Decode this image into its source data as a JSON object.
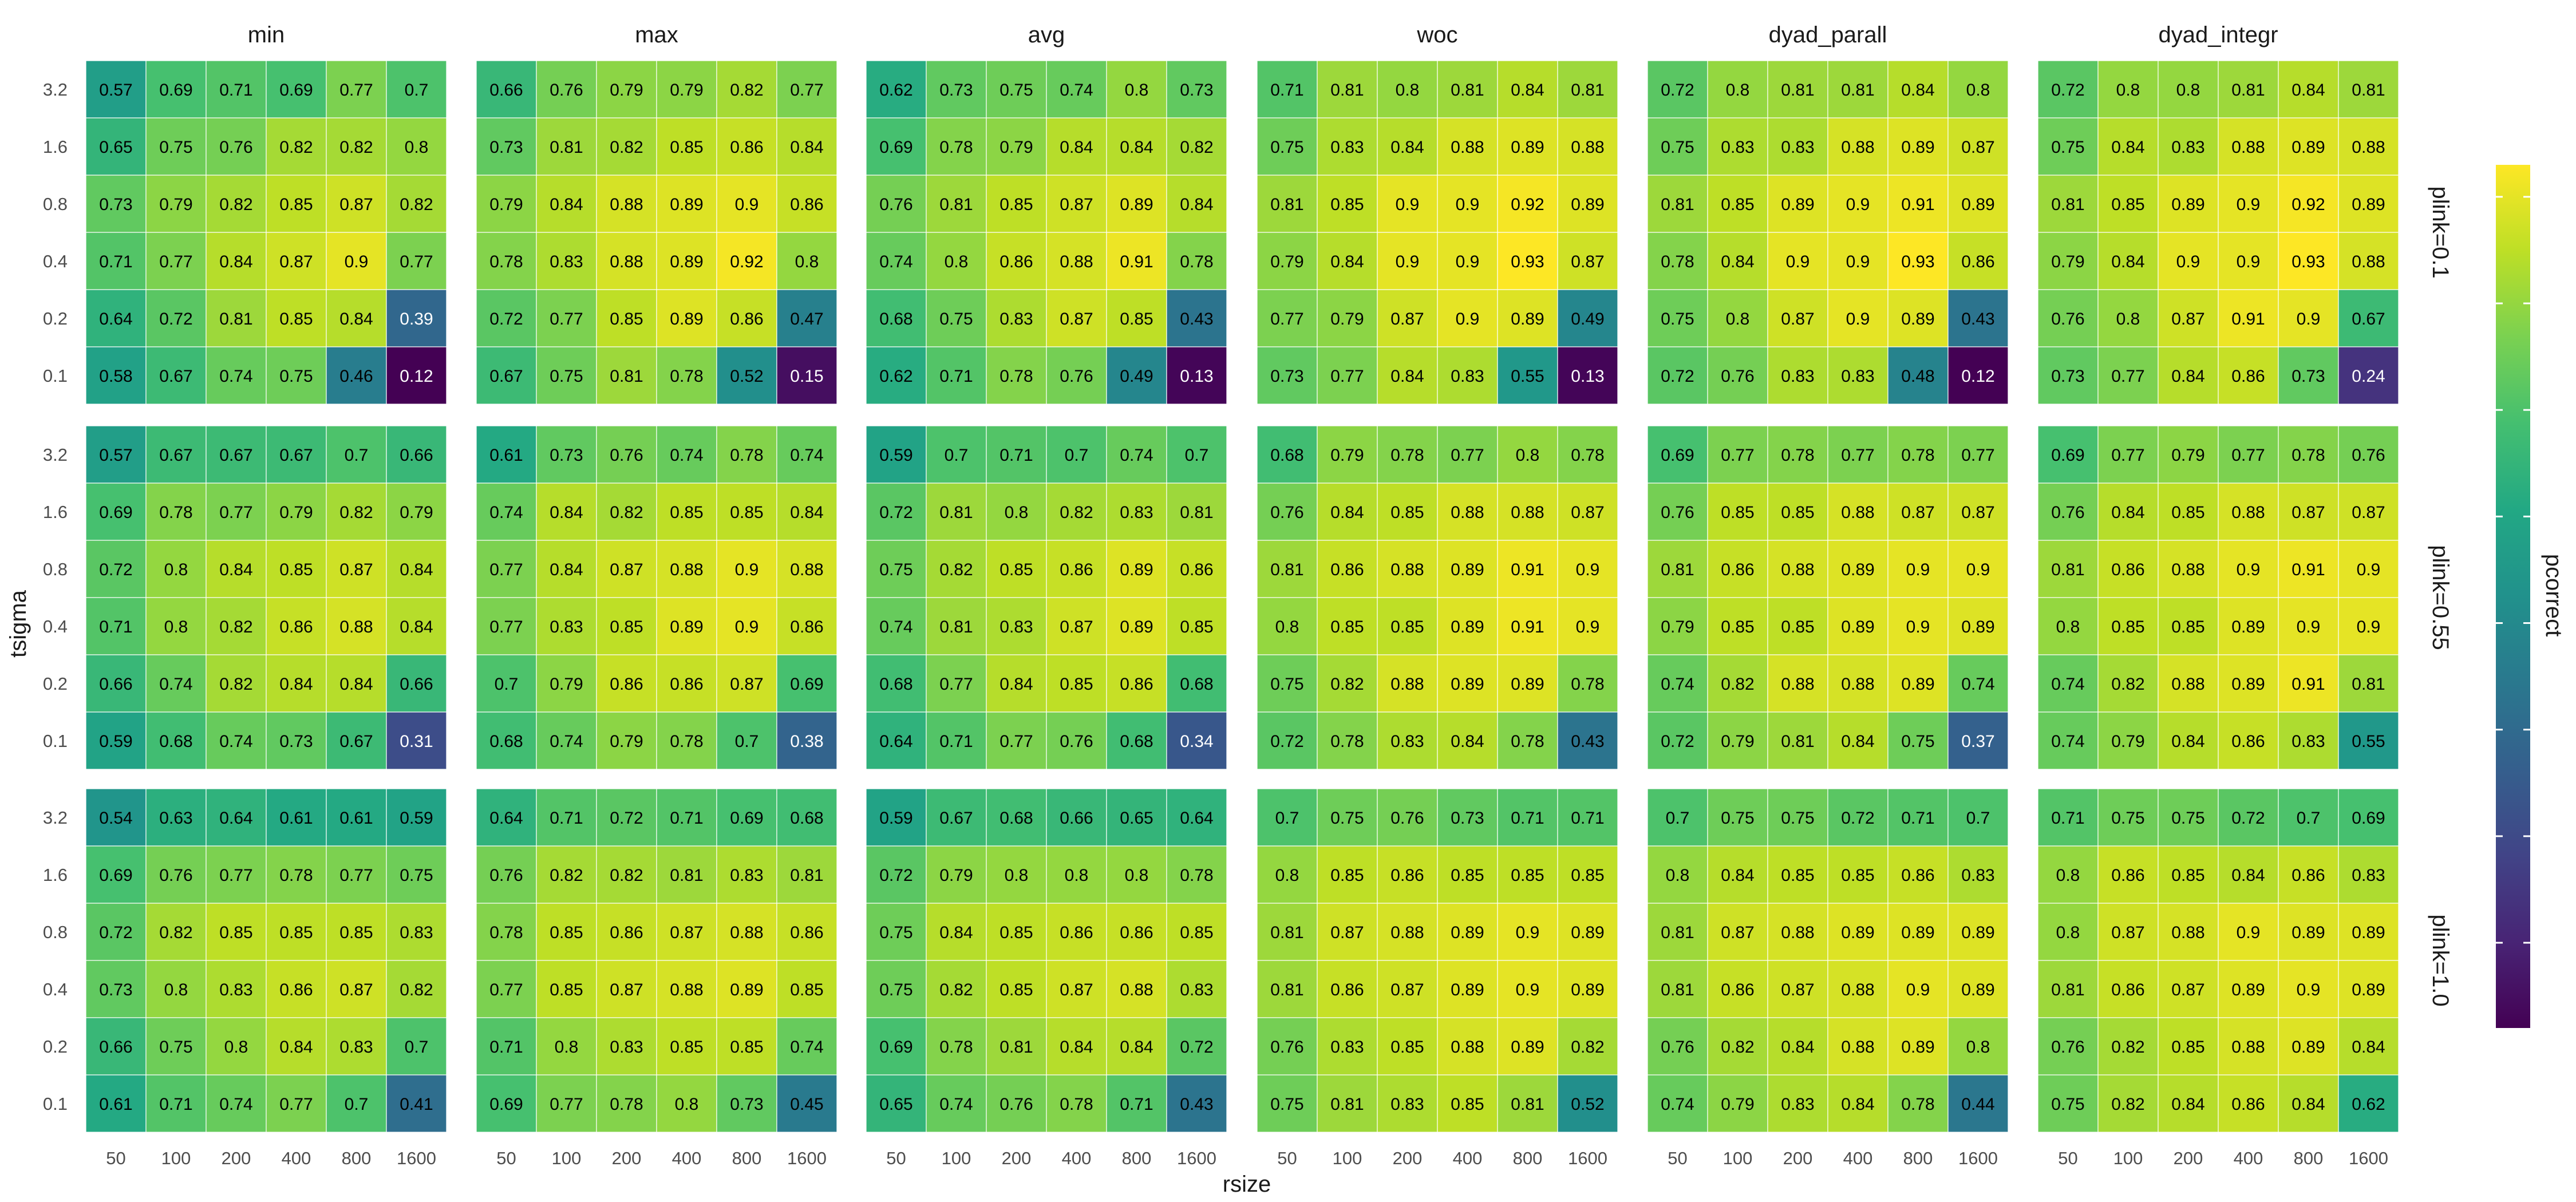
{
  "chart_data": {
    "type": "heatmap",
    "xlabel": "rsize",
    "ylabel": "tsigma",
    "facet_columns": [
      "min",
      "max",
      "avg",
      "woc",
      "dyad_parall",
      "dyad_integr"
    ],
    "facet_rows": [
      "plink=0.1",
      "plink=0.55",
      "plink=1.0"
    ],
    "x_categories": [
      "50",
      "100",
      "200",
      "400",
      "800",
      "1600"
    ],
    "y_categories": [
      "3.2",
      "1.6",
      "0.8",
      "0.4",
      "0.2",
      "0.1"
    ],
    "legend": {
      "title": "pcorrect",
      "position": "right",
      "min": 0.12,
      "max": 0.93,
      "colormap": "viridis"
    },
    "panels": [
      [
        [
          [
            0.57,
            0.69,
            0.71,
            0.69,
            0.77,
            0.7
          ],
          [
            0.65,
            0.75,
            0.76,
            0.82,
            0.82,
            0.8
          ],
          [
            0.73,
            0.79,
            0.82,
            0.85,
            0.87,
            0.82
          ],
          [
            0.71,
            0.77,
            0.84,
            0.87,
            0.9,
            0.77
          ],
          [
            0.64,
            0.72,
            0.81,
            0.85,
            0.84,
            0.39
          ],
          [
            0.58,
            0.67,
            0.74,
            0.75,
            0.46,
            0.12
          ]
        ],
        [
          [
            0.66,
            0.76,
            0.79,
            0.79,
            0.82,
            0.77
          ],
          [
            0.73,
            0.81,
            0.82,
            0.85,
            0.86,
            0.84
          ],
          [
            0.79,
            0.84,
            0.88,
            0.89,
            0.9,
            0.86
          ],
          [
            0.78,
            0.83,
            0.88,
            0.89,
            0.92,
            0.8
          ],
          [
            0.72,
            0.77,
            0.85,
            0.89,
            0.86,
            0.47
          ],
          [
            0.67,
            0.75,
            0.81,
            0.78,
            0.52,
            0.15
          ]
        ],
        [
          [
            0.62,
            0.73,
            0.75,
            0.74,
            0.8,
            0.73
          ],
          [
            0.69,
            0.78,
            0.79,
            0.84,
            0.84,
            0.82
          ],
          [
            0.76,
            0.81,
            0.85,
            0.87,
            0.89,
            0.84
          ],
          [
            0.74,
            0.8,
            0.86,
            0.88,
            0.91,
            0.78
          ],
          [
            0.68,
            0.75,
            0.83,
            0.87,
            0.85,
            0.43
          ],
          [
            0.62,
            0.71,
            0.78,
            0.76,
            0.49,
            0.13
          ]
        ],
        [
          [
            0.71,
            0.81,
            0.8,
            0.81,
            0.84,
            0.81
          ],
          [
            0.75,
            0.83,
            0.84,
            0.88,
            0.89,
            0.88
          ],
          [
            0.81,
            0.85,
            0.9,
            0.9,
            0.92,
            0.89
          ],
          [
            0.79,
            0.84,
            0.9,
            0.9,
            0.93,
            0.87
          ],
          [
            0.77,
            0.79,
            0.87,
            0.9,
            0.89,
            0.49
          ],
          [
            0.73,
            0.77,
            0.84,
            0.83,
            0.55,
            0.13
          ]
        ],
        [
          [
            0.72,
            0.8,
            0.81,
            0.81,
            0.84,
            0.8
          ],
          [
            0.75,
            0.83,
            0.83,
            0.88,
            0.89,
            0.87
          ],
          [
            0.81,
            0.85,
            0.89,
            0.9,
            0.91,
            0.89
          ],
          [
            0.78,
            0.84,
            0.9,
            0.9,
            0.93,
            0.86
          ],
          [
            0.75,
            0.8,
            0.87,
            0.9,
            0.89,
            0.43
          ],
          [
            0.72,
            0.76,
            0.83,
            0.83,
            0.48,
            0.12
          ]
        ],
        [
          [
            0.72,
            0.8,
            0.8,
            0.81,
            0.84,
            0.81
          ],
          [
            0.75,
            0.84,
            0.83,
            0.88,
            0.89,
            0.88
          ],
          [
            0.81,
            0.85,
            0.89,
            0.9,
            0.92,
            0.89
          ],
          [
            0.79,
            0.84,
            0.9,
            0.9,
            0.93,
            0.88
          ],
          [
            0.76,
            0.8,
            0.87,
            0.91,
            0.9,
            0.67
          ],
          [
            0.73,
            0.77,
            0.84,
            0.86,
            0.73,
            0.24
          ]
        ]
      ],
      [
        [
          [
            0.57,
            0.67,
            0.67,
            0.67,
            0.7,
            0.66
          ],
          [
            0.69,
            0.78,
            0.77,
            0.79,
            0.82,
            0.79
          ],
          [
            0.72,
            0.8,
            0.84,
            0.85,
            0.87,
            0.84
          ],
          [
            0.71,
            0.8,
            0.82,
            0.86,
            0.88,
            0.84
          ],
          [
            0.66,
            0.74,
            0.82,
            0.84,
            0.84,
            0.66
          ],
          [
            0.59,
            0.68,
            0.74,
            0.73,
            0.67,
            0.31
          ]
        ],
        [
          [
            0.61,
            0.73,
            0.76,
            0.74,
            0.78,
            0.74
          ],
          [
            0.74,
            0.84,
            0.82,
            0.85,
            0.85,
            0.84
          ],
          [
            0.77,
            0.84,
            0.87,
            0.88,
            0.9,
            0.88
          ],
          [
            0.77,
            0.83,
            0.85,
            0.89,
            0.9,
            0.86
          ],
          [
            0.7,
            0.79,
            0.86,
            0.86,
            0.87,
            0.69
          ],
          [
            0.68,
            0.74,
            0.79,
            0.78,
            0.7,
            0.38
          ]
        ],
        [
          [
            0.59,
            0.7,
            0.71,
            0.7,
            0.74,
            0.7
          ],
          [
            0.72,
            0.81,
            0.8,
            0.82,
            0.83,
            0.81
          ],
          [
            0.75,
            0.82,
            0.85,
            0.86,
            0.89,
            0.86
          ],
          [
            0.74,
            0.81,
            0.83,
            0.87,
            0.89,
            0.85
          ],
          [
            0.68,
            0.77,
            0.84,
            0.85,
            0.86,
            0.68
          ],
          [
            0.64,
            0.71,
            0.77,
            0.76,
            0.68,
            0.34
          ]
        ],
        [
          [
            0.68,
            0.79,
            0.78,
            0.77,
            0.8,
            0.78
          ],
          [
            0.76,
            0.84,
            0.85,
            0.88,
            0.88,
            0.87
          ],
          [
            0.81,
            0.86,
            0.88,
            0.89,
            0.91,
            0.9
          ],
          [
            0.8,
            0.85,
            0.85,
            0.89,
            0.91,
            0.9
          ],
          [
            0.75,
            0.82,
            0.88,
            0.89,
            0.89,
            0.78
          ],
          [
            0.72,
            0.78,
            0.83,
            0.84,
            0.78,
            0.43
          ]
        ],
        [
          [
            0.69,
            0.77,
            0.78,
            0.77,
            0.78,
            0.77
          ],
          [
            0.76,
            0.85,
            0.85,
            0.88,
            0.87,
            0.87
          ],
          [
            0.81,
            0.86,
            0.88,
            0.89,
            0.9,
            0.9
          ],
          [
            0.79,
            0.85,
            0.85,
            0.89,
            0.9,
            0.89
          ],
          [
            0.74,
            0.82,
            0.88,
            0.88,
            0.89,
            0.74
          ],
          [
            0.72,
            0.79,
            0.81,
            0.84,
            0.75,
            0.37
          ]
        ],
        [
          [
            0.69,
            0.77,
            0.79,
            0.77,
            0.78,
            0.76
          ],
          [
            0.76,
            0.84,
            0.85,
            0.88,
            0.87,
            0.87
          ],
          [
            0.81,
            0.86,
            0.88,
            0.9,
            0.91,
            0.9
          ],
          [
            0.8,
            0.85,
            0.85,
            0.89,
            0.9,
            0.9
          ],
          [
            0.74,
            0.82,
            0.88,
            0.89,
            0.91,
            0.81
          ],
          [
            0.74,
            0.79,
            0.84,
            0.86,
            0.83,
            0.55
          ]
        ]
      ],
      [
        [
          [
            0.54,
            0.63,
            0.64,
            0.61,
            0.61,
            0.59
          ],
          [
            0.69,
            0.76,
            0.77,
            0.78,
            0.77,
            0.75
          ],
          [
            0.72,
            0.82,
            0.85,
            0.85,
            0.85,
            0.83
          ],
          [
            0.73,
            0.8,
            0.83,
            0.86,
            0.87,
            0.82
          ],
          [
            0.66,
            0.75,
            0.8,
            0.84,
            0.83,
            0.7
          ],
          [
            0.61,
            0.71,
            0.74,
            0.77,
            0.7,
            0.41
          ]
        ],
        [
          [
            0.64,
            0.71,
            0.72,
            0.71,
            0.69,
            0.68
          ],
          [
            0.76,
            0.82,
            0.82,
            0.81,
            0.83,
            0.81
          ],
          [
            0.78,
            0.85,
            0.86,
            0.87,
            0.88,
            0.86
          ],
          [
            0.77,
            0.85,
            0.87,
            0.88,
            0.89,
            0.85
          ],
          [
            0.71,
            0.8,
            0.83,
            0.85,
            0.85,
            0.74
          ],
          [
            0.69,
            0.77,
            0.78,
            0.8,
            0.73,
            0.45
          ]
        ],
        [
          [
            0.59,
            0.67,
            0.68,
            0.66,
            0.65,
            0.64
          ],
          [
            0.72,
            0.79,
            0.8,
            0.8,
            0.8,
            0.78
          ],
          [
            0.75,
            0.84,
            0.85,
            0.86,
            0.86,
            0.85
          ],
          [
            0.75,
            0.82,
            0.85,
            0.87,
            0.88,
            0.83
          ],
          [
            0.69,
            0.78,
            0.81,
            0.84,
            0.84,
            0.72
          ],
          [
            0.65,
            0.74,
            0.76,
            0.78,
            0.71,
            0.43
          ]
        ],
        [
          [
            0.7,
            0.75,
            0.76,
            0.73,
            0.71,
            0.71
          ],
          [
            0.8,
            0.85,
            0.86,
            0.85,
            0.85,
            0.85
          ],
          [
            0.81,
            0.87,
            0.88,
            0.89,
            0.9,
            0.89
          ],
          [
            0.81,
            0.86,
            0.87,
            0.89,
            0.9,
            0.89
          ],
          [
            0.76,
            0.83,
            0.85,
            0.88,
            0.89,
            0.82
          ],
          [
            0.75,
            0.81,
            0.83,
            0.85,
            0.81,
            0.52
          ]
        ],
        [
          [
            0.7,
            0.75,
            0.75,
            0.72,
            0.71,
            0.7
          ],
          [
            0.8,
            0.84,
            0.85,
            0.85,
            0.86,
            0.83
          ],
          [
            0.81,
            0.87,
            0.88,
            0.89,
            0.89,
            0.89
          ],
          [
            0.81,
            0.86,
            0.87,
            0.88,
            0.9,
            0.89
          ],
          [
            0.76,
            0.82,
            0.84,
            0.88,
            0.89,
            0.8
          ],
          [
            0.74,
            0.79,
            0.83,
            0.84,
            0.78,
            0.44
          ]
        ],
        [
          [
            0.71,
            0.75,
            0.75,
            0.72,
            0.7,
            0.69
          ],
          [
            0.8,
            0.86,
            0.85,
            0.84,
            0.86,
            0.83
          ],
          [
            0.8,
            0.87,
            0.88,
            0.9,
            0.89,
            0.89
          ],
          [
            0.81,
            0.86,
            0.87,
            0.89,
            0.9,
            0.89
          ],
          [
            0.76,
            0.82,
            0.85,
            0.88,
            0.89,
            0.84
          ],
          [
            0.75,
            0.82,
            0.84,
            0.86,
            0.84,
            0.62
          ]
        ]
      ]
    ]
  }
}
